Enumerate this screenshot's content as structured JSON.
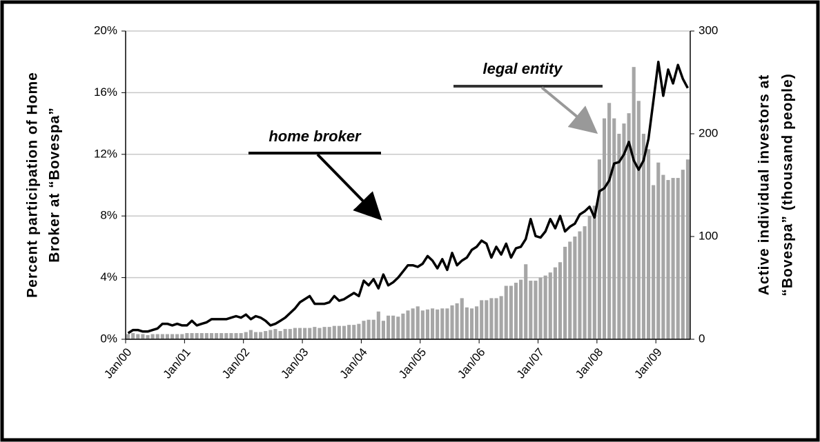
{
  "chart_data": {
    "type": "combo",
    "y_label_lines": [
      "Percent participation of Home",
      "Broker at “Bovespa”"
    ],
    "y2_label_lines": [
      "Active individual investors at",
      "“Bovespa” (thousand people)"
    ],
    "annotations": [
      "home broker",
      "legal entity"
    ],
    "categories": [
      "Jan/00",
      null,
      null,
      null,
      null,
      null,
      null,
      null,
      null,
      null,
      null,
      null,
      "Jan/01",
      null,
      null,
      null,
      null,
      null,
      null,
      null,
      null,
      null,
      null,
      null,
      "Jan/02",
      null,
      null,
      null,
      null,
      null,
      null,
      null,
      null,
      null,
      null,
      null,
      "Jan/03",
      null,
      null,
      null,
      null,
      null,
      null,
      null,
      null,
      null,
      null,
      null,
      "Jan/04",
      null,
      null,
      null,
      null,
      null,
      null,
      null,
      null,
      null,
      null,
      null,
      "Jan/05",
      null,
      null,
      null,
      null,
      null,
      null,
      null,
      null,
      null,
      null,
      null,
      "Jan/06",
      null,
      null,
      null,
      null,
      null,
      null,
      null,
      null,
      null,
      null,
      null,
      "Jan/07",
      null,
      null,
      null,
      null,
      null,
      null,
      null,
      null,
      null,
      null,
      null,
      "Jan/08",
      null,
      null,
      null,
      null,
      null,
      null,
      null,
      null,
      null,
      null,
      null,
      "Jan/09",
      null,
      null,
      null,
      null,
      null,
      null
    ],
    "series": [
      {
        "name": "legal entity",
        "type": "bar",
        "axis": "y2",
        "color": "#a6a6a6",
        "values": [
          5,
          6,
          5,
          5,
          4,
          5,
          5,
          5,
          5,
          5,
          5,
          5,
          6,
          6,
          6,
          6,
          6,
          6,
          6,
          6,
          6,
          6,
          6,
          6,
          7,
          9,
          7,
          7,
          8,
          9,
          10,
          8,
          10,
          10,
          11,
          11,
          11,
          11,
          12,
          11,
          12,
          12,
          13,
          13,
          13,
          14,
          14,
          15,
          18,
          19,
          19,
          27,
          18,
          23,
          23,
          22,
          25,
          28,
          30,
          32,
          28,
          29,
          30,
          29,
          30,
          30,
          33,
          35,
          40,
          31,
          30,
          32,
          38,
          38,
          40,
          40,
          42,
          52,
          52,
          55,
          58,
          73,
          57,
          57,
          60,
          62,
          65,
          70,
          75,
          90,
          95,
          100,
          105,
          110,
          120,
          130,
          175,
          215,
          230,
          215,
          200,
          210,
          220,
          265,
          232,
          200,
          185,
          150,
          172,
          160,
          155,
          157,
          157,
          165,
          175
        ]
      },
      {
        "name": "home broker",
        "type": "line",
        "color": "#000000",
        "values": [
          0.4,
          0.6,
          0.6,
          0.5,
          0.5,
          0.6,
          0.7,
          1.0,
          1.0,
          0.9,
          1.0,
          0.9,
          0.9,
          1.2,
          0.9,
          1.0,
          1.1,
          1.3,
          1.3,
          1.3,
          1.3,
          1.4,
          1.5,
          1.4,
          1.6,
          1.3,
          1.5,
          1.4,
          1.2,
          0.9,
          1.0,
          1.2,
          1.4,
          1.7,
          2.0,
          2.4,
          2.6,
          2.8,
          2.3,
          2.3,
          2.3,
          2.4,
          2.8,
          2.5,
          2.6,
          2.8,
          3.0,
          2.8,
          3.8,
          3.5,
          3.9,
          3.3,
          4.2,
          3.5,
          3.7,
          4.0,
          4.4,
          4.8,
          4.8,
          4.7,
          4.9,
          5.4,
          5.1,
          4.6,
          5.2,
          4.5,
          5.6,
          4.8,
          5.1,
          5.3,
          5.8,
          6.0,
          6.4,
          6.2,
          5.3,
          6.0,
          5.5,
          6.2,
          5.3,
          5.9,
          6.0,
          6.5,
          7.8,
          6.7,
          6.6,
          7.0,
          7.8,
          7.2,
          8.0,
          7.0,
          7.3,
          7.5,
          8.1,
          8.3,
          8.6,
          7.9,
          9.6,
          9.8,
          10.3,
          11.4,
          11.5,
          12.0,
          12.8,
          11.6,
          11.0,
          11.6,
          13.0,
          15.5,
          18.0,
          15.8,
          17.5,
          16.6,
          17.8,
          16.9,
          16.3
        ]
      }
    ],
    "ylim": [
      0,
      20
    ],
    "yticks": [
      {
        "value": 0,
        "label": "0%"
      },
      {
        "value": 4,
        "label": "4%"
      },
      {
        "value": 8,
        "label": "8%"
      },
      {
        "value": 12,
        "label": "12%"
      },
      {
        "value": 16,
        "label": "16%"
      },
      {
        "value": 20,
        "label": "20%"
      }
    ],
    "y2lim": [
      0,
      300
    ],
    "y2ticks": [
      0,
      100,
      200,
      300
    ],
    "grid": true
  }
}
